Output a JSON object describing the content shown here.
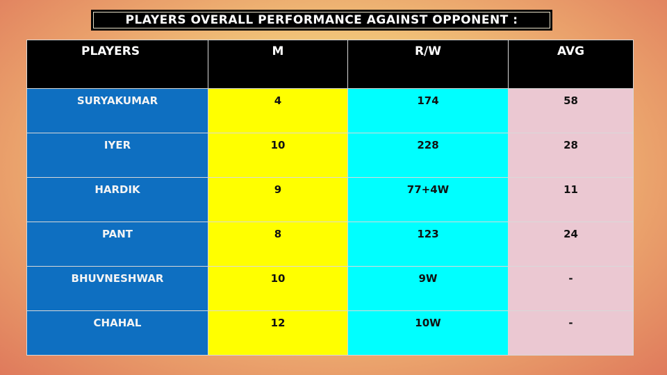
{
  "title": "PLAYERS OVERALL PERFORMANCE AGAINST OPPONENT :",
  "table": {
    "headers": [
      "PLAYERS",
      "M",
      "R/W",
      "AVG"
    ],
    "rows": [
      [
        "SURYAKUMAR",
        "4",
        "174",
        "58"
      ],
      [
        "IYER",
        "10",
        "228",
        "28"
      ],
      [
        "HARDIK",
        "9",
        "77+4W",
        "11"
      ],
      [
        "PANT",
        "8",
        "123",
        "24"
      ],
      [
        "BHUVNESHWAR",
        "10",
        "9W",
        "-"
      ],
      [
        "CHAHAL",
        "12",
        "10W",
        "-"
      ]
    ]
  },
  "colors": {
    "header": "#000000",
    "players_column": "#0e6fc1",
    "m_column": "#ffff00",
    "rw_column": "#00ffff",
    "avg_column": "#ebc8d2"
  }
}
